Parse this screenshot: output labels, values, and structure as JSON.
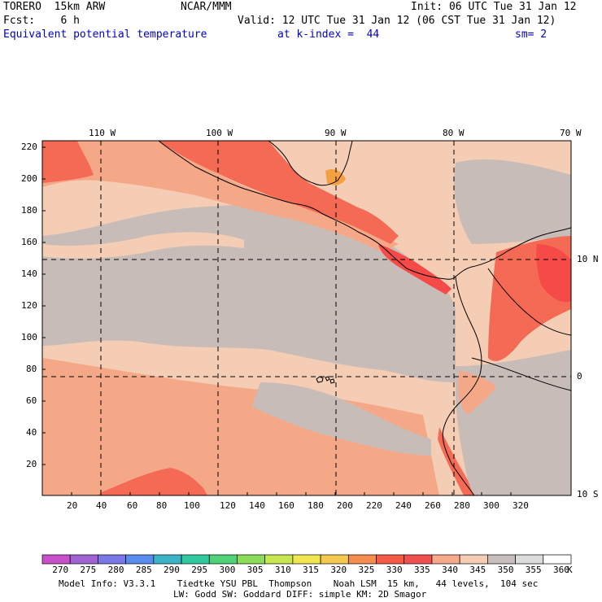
{
  "header": {
    "model": "TORERO  15km ARW",
    "org": "NCAR/MMM",
    "init": "Init: 06 UTC Tue 31 Jan 12",
    "fcst": "Fcst:    6 h",
    "valid": "Valid: 12 UTC Tue 31 Jan 12 (06 CST Tue 31 Jan 12)",
    "field": "Equivalent potential temperature",
    "level": "at k-index =  44",
    "smooth": "sm= 2"
  },
  "map": {
    "lon_labels": [
      "110 W",
      "100 W",
      "90 W",
      "80 W",
      "70 W"
    ],
    "lat_labels": [
      "10 N",
      "0",
      "10 S"
    ],
    "y_ticks": [
      "220",
      "200",
      "180",
      "160",
      "140",
      "120",
      "100",
      "80",
      "60",
      "40",
      "20"
    ],
    "x_ticks": [
      "20",
      "40",
      "60",
      "80",
      "100",
      "120",
      "140",
      "160",
      "180",
      "200",
      "220",
      "240",
      "260",
      "280",
      "300",
      "320"
    ],
    "region_colors": {
      "ocean_low": "#c8bcb8",
      "mid": "#f5cdb5",
      "warm": "#f5a888",
      "hot": "#f56a55",
      "very_hot": "#f54a48",
      "peak": "#f5a040"
    }
  },
  "colorbar": {
    "unit": "K",
    "labels": [
      "270",
      "275",
      "280",
      "285",
      "290",
      "295",
      "300",
      "305",
      "310",
      "315",
      "320",
      "325",
      "330",
      "335",
      "340",
      "345",
      "350",
      "355",
      "360"
    ],
    "colors": [
      "#c850c8",
      "#a064d2",
      "#7a78e6",
      "#5a8cf0",
      "#3cb4c8",
      "#32c8a0",
      "#50d278",
      "#8cdc5a",
      "#c8e650",
      "#f0e650",
      "#f5c850",
      "#f58c50",
      "#f55a46",
      "#f05050",
      "#f5aa8c",
      "#f5cdb4",
      "#c8bebe",
      "#dcdcdc",
      "#ffffff"
    ]
  },
  "footer": {
    "line1": "Model Info: V3.3.1    Tiedtke YSU PBL  Thompson    Noah LSM  15 km,   44 levels,  104 sec",
    "line2": "LW: Godd SW: Goddard DIFF: simple KM: 2D Smagor"
  }
}
